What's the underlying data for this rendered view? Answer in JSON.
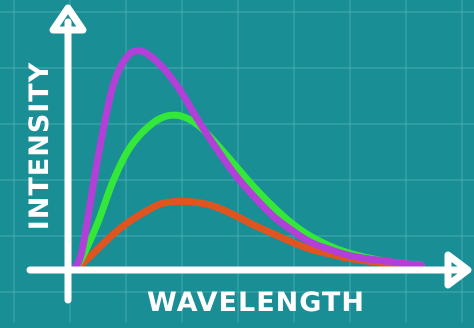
{
  "chart_data": {
    "type": "line",
    "title": "",
    "xlabel": "WAVELENGTH",
    "ylabel": "INTENSITY",
    "xlim": [
      0,
      10
    ],
    "ylim": [
      0,
      10
    ],
    "grid": true,
    "legend": "none",
    "series": [
      {
        "color": "#b23fd8",
        "x": [
          0.4,
          0.8,
          1.2,
          1.6,
          2.0,
          2.5,
          3.0,
          3.5,
          4.0,
          4.5,
          5.0,
          5.5,
          6.0,
          6.5,
          7.0,
          7.5,
          8.0,
          8.5,
          9.0,
          9.5
        ],
        "y": [
          0.9,
          4.6,
          7.6,
          8.9,
          9.1,
          8.5,
          7.5,
          6.2,
          5.0,
          3.9,
          3.0,
          2.2,
          1.6,
          1.1,
          0.8,
          0.55,
          0.4,
          0.3,
          0.2,
          0.12
        ]
      },
      {
        "color": "#34e83a",
        "x": [
          0.4,
          0.8,
          1.2,
          1.6,
          2.0,
          2.5,
          3.0,
          3.5,
          4.0,
          4.5,
          5.0,
          5.5,
          6.0,
          6.5,
          7.0,
          7.5,
          8.0,
          8.5,
          9.0,
          9.5
        ],
        "y": [
          0.5,
          1.9,
          3.6,
          4.9,
          5.7,
          6.3,
          6.4,
          6.0,
          5.2,
          4.3,
          3.4,
          2.6,
          1.9,
          1.35,
          0.95,
          0.65,
          0.45,
          0.3,
          0.2,
          0.12
        ]
      },
      {
        "color": "#e0541f",
        "x": [
          0.4,
          0.8,
          1.2,
          1.6,
          2.0,
          2.5,
          3.0,
          3.5,
          4.0,
          4.5,
          5.0,
          5.5,
          6.0,
          6.5,
          7.0,
          7.5,
          8.0,
          8.5,
          9.0,
          9.5
        ],
        "y": [
          0.2,
          0.8,
          1.4,
          1.9,
          2.3,
          2.7,
          2.8,
          2.75,
          2.55,
          2.2,
          1.8,
          1.45,
          1.1,
          0.8,
          0.6,
          0.42,
          0.3,
          0.2,
          0.14,
          0.1
        ]
      }
    ]
  }
}
